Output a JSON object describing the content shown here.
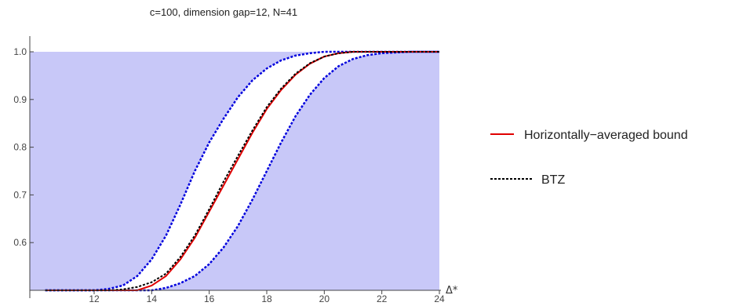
{
  "chart_data": {
    "type": "line",
    "title": "c=100, dimension gap=12, N=41",
    "xlabel": "Δ*",
    "ylabel": "",
    "xlim": [
      10.3,
      24
    ],
    "ylim": [
      0.5,
      1.0
    ],
    "x_ticks": [
      "12",
      "14",
      "16",
      "18",
      "20",
      "22",
      "24"
    ],
    "y_ticks": [
      "0.6",
      "0.7",
      "0.8",
      "0.9",
      "1.0"
    ],
    "shaded_region_color": "#c8c8f8",
    "x": [
      10.3,
      11,
      12,
      12.5,
      13,
      13.5,
      14,
      14.5,
      15,
      15.5,
      16,
      16.5,
      17,
      17.5,
      18,
      18.5,
      19,
      19.5,
      20,
      20.5,
      21,
      21.5,
      22,
      23,
      24
    ],
    "series": [
      {
        "name": "Horizontally−averaged bound",
        "style": "solid",
        "color": "#e00000",
        "values": [
          0.5,
          0.5,
          0.5,
          0.5,
          0.5,
          0.5,
          0.51,
          0.53,
          0.565,
          0.61,
          0.665,
          0.72,
          0.775,
          0.83,
          0.88,
          0.92,
          0.952,
          0.975,
          0.99,
          0.997,
          1.0,
          1.0,
          1.0,
          1.0,
          1.0
        ]
      },
      {
        "name": "BTZ",
        "style": "dotted",
        "color": "#000000",
        "values": [
          0.5,
          0.5,
          0.5,
          0.5,
          0.502,
          0.507,
          0.517,
          0.535,
          0.57,
          0.615,
          0.67,
          0.728,
          0.782,
          0.835,
          0.884,
          0.923,
          0.954,
          0.976,
          0.99,
          0.997,
          1.0,
          1.0,
          1.0,
          1.0,
          1.0
        ]
      },
      {
        "name": "",
        "style": "dotted",
        "color": "#0000dd",
        "values": [
          0.5,
          0.5,
          0.5,
          0.503,
          0.51,
          0.53,
          0.565,
          0.615,
          0.68,
          0.75,
          0.81,
          0.86,
          0.905,
          0.94,
          0.965,
          0.982,
          0.992,
          0.997,
          1.0,
          1.0,
          1.0,
          1.0,
          1.0,
          1.0,
          1.0
        ]
      },
      {
        "name": "",
        "style": "dotted",
        "color": "#0000dd",
        "values": [
          0.5,
          0.5,
          0.5,
          0.5,
          0.5,
          0.5,
          0.5,
          0.505,
          0.515,
          0.53,
          0.555,
          0.59,
          0.635,
          0.69,
          0.75,
          0.81,
          0.865,
          0.91,
          0.945,
          0.97,
          0.985,
          0.993,
          0.997,
          1.0,
          1.0
        ]
      }
    ],
    "legend": {
      "placement": "right",
      "entries": [
        {
          "label": "Horizontally−averaged bound",
          "style": "solid",
          "color": "#e00000"
        },
        {
          "label": "BTZ",
          "style": "dotted",
          "color": "#000000"
        }
      ]
    }
  }
}
